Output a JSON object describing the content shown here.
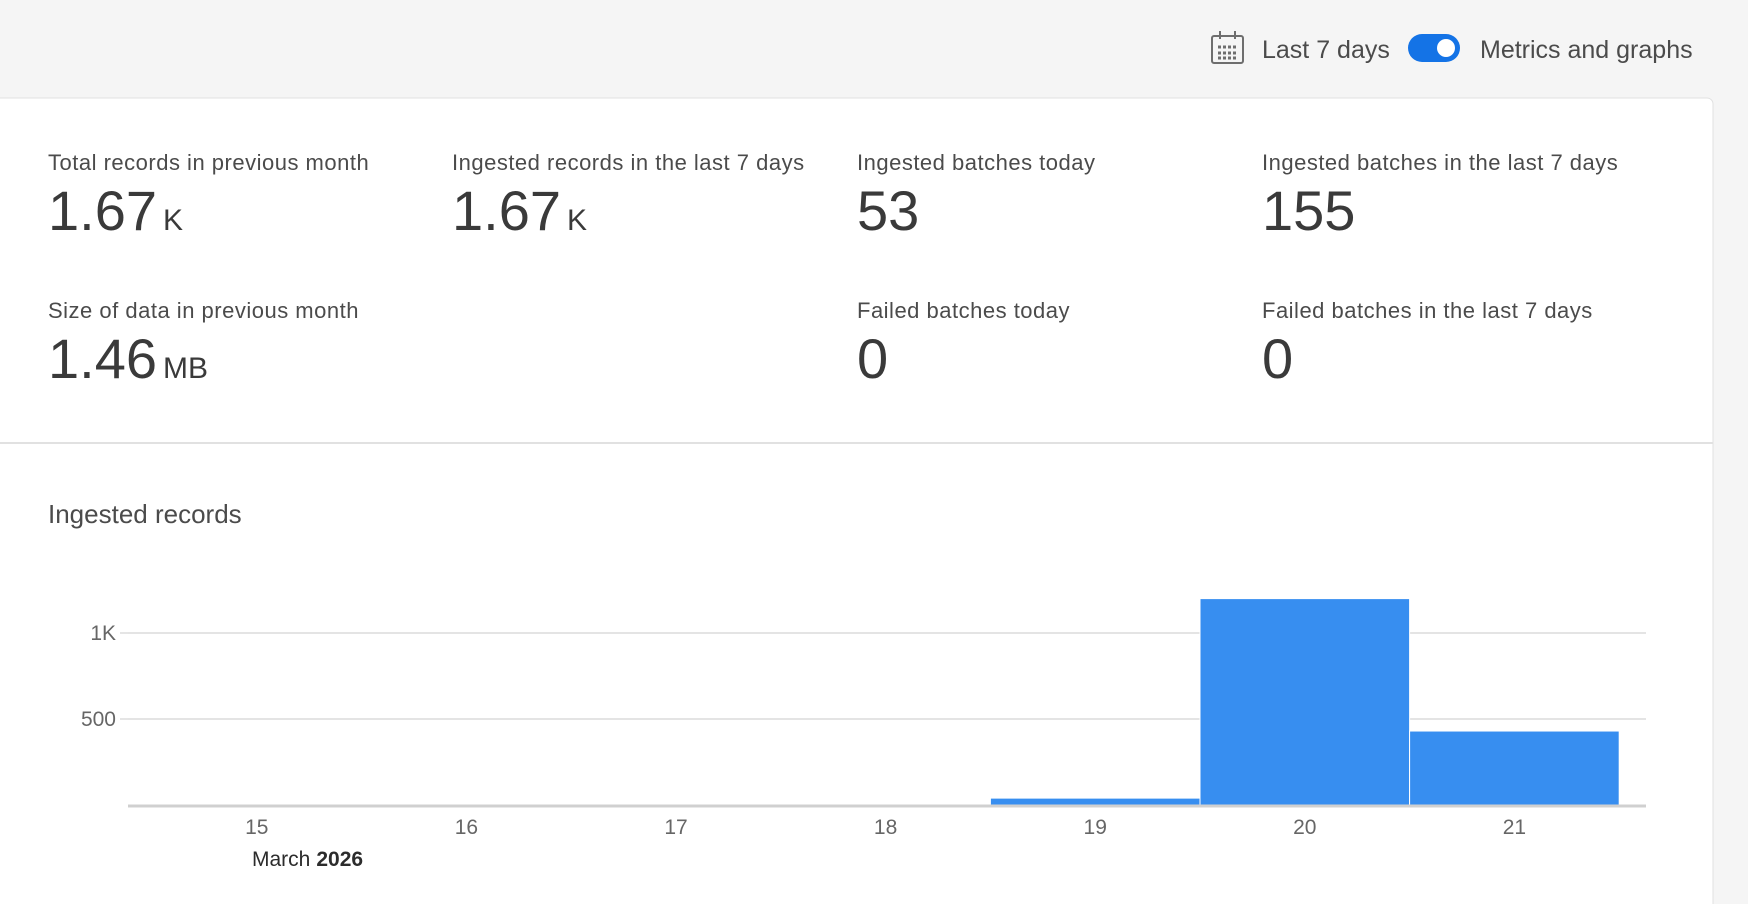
{
  "toolbar": {
    "date_range": "Last 7 days",
    "toggle_label": "Metrics and graphs"
  },
  "metrics": [
    {
      "label": "Total records in previous month",
      "value": "1.67",
      "unit": "K"
    },
    {
      "label": "Ingested records in the last 7 days",
      "value": "1.67",
      "unit": "K"
    },
    {
      "label": "Ingested batches today",
      "value": "53"
    },
    {
      "label": "Ingested batches in the last 7 days",
      "value": "155"
    },
    {
      "label": "Size of data in previous month",
      "value": "1.46",
      "unit": "MB"
    },
    {
      "label": "Failed batches today",
      "value": "0"
    },
    {
      "label": "Failed batches in the last 7 days",
      "value": "0"
    }
  ],
  "chart_data": {
    "type": "bar",
    "title": "Ingested records",
    "categories": [
      "15",
      "16",
      "17",
      "18",
      "19",
      "20",
      "21"
    ],
    "values": [
      0,
      0,
      0,
      0,
      40,
      1200,
      430
    ],
    "color": "#378ef0",
    "ylim": [
      0,
      1250
    ],
    "yticks": [
      {
        "value": 500,
        "label": "500"
      },
      {
        "value": 1000,
        "label": "1K"
      }
    ],
    "grid": true,
    "x_month": "March",
    "x_year": "2026"
  }
}
